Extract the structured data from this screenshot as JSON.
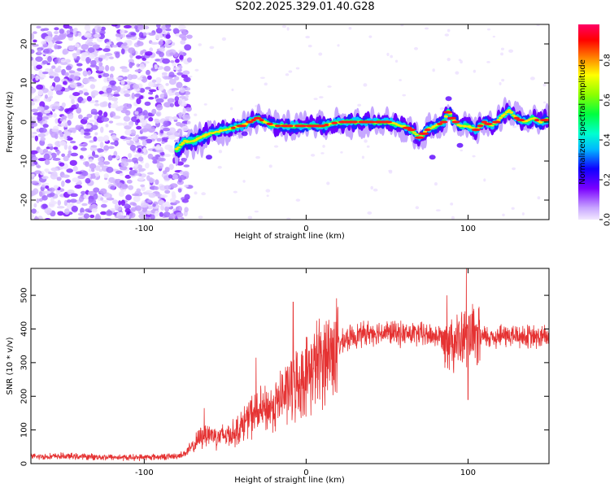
{
  "figure_title": "S202.2025.329.01.40.G28",
  "colors": {
    "snr_line": "#e53232",
    "spectrogram_low": "#8a00ff",
    "spectrogram_mid": "#00ff66",
    "spectrogram_high": "#ff0033"
  },
  "chart_data": [
    {
      "type": "heatmap",
      "title": "",
      "xlabel": "Height of straight line (km)",
      "ylabel": "Frequency (Hz)",
      "xlim": [
        -170,
        150
      ],
      "ylim": [
        -25,
        25
      ],
      "xticks": [
        -100,
        0,
        100
      ],
      "yticks": [
        -20,
        -10,
        0,
        10,
        20
      ],
      "noise_region_x": [
        -170,
        -72
      ],
      "ridge": {
        "x": [
          -80,
          -75,
          -70,
          -60,
          -50,
          -40,
          -30,
          -20,
          -10,
          0,
          10,
          20,
          30,
          40,
          50,
          60,
          65,
          70,
          75,
          80,
          85,
          88,
          90,
          95,
          100,
          105,
          110,
          115,
          120,
          125,
          130,
          135,
          140,
          145,
          150
        ],
        "frequency_hz": [
          -7,
          -5,
          -5,
          -3,
          -2,
          -1,
          1,
          -1,
          -1,
          -1,
          -1,
          0,
          0,
          0,
          0,
          -1,
          -2,
          -4,
          -2,
          -1,
          0,
          3,
          1,
          -1,
          -1,
          -2,
          0,
          -1,
          1,
          3,
          1,
          0,
          1,
          0,
          1
        ]
      },
      "colorbar": {
        "label": "Normalized spectral amplitude",
        "range": [
          0.0,
          0.98
        ],
        "ticks": [
          "0.0",
          "0.2",
          "0.4",
          "0.6",
          "0.8"
        ]
      }
    },
    {
      "type": "line",
      "title": "",
      "xlabel": "Height of straight line (km)",
      "ylabel": "SNR (10 * v/v)",
      "xlim": [
        -170,
        150
      ],
      "ylim": [
        0,
        580
      ],
      "xticks": [
        -100,
        0,
        100
      ],
      "yticks": [
        0,
        100,
        200,
        300,
        400,
        500
      ],
      "series": [
        {
          "name": "SNR",
          "x": [
            -170,
            -150,
            -130,
            -110,
            -90,
            -80,
            -75,
            -70,
            -65,
            -60,
            -55,
            -50,
            -45,
            -40,
            -35,
            -30,
            -25,
            -20,
            -15,
            -10,
            -5,
            0,
            5,
            10,
            15,
            20,
            25,
            30,
            40,
            50,
            60,
            70,
            80,
            90,
            95,
            100,
            105,
            110,
            120,
            130,
            140,
            150
          ],
          "values": [
            20,
            22,
            20,
            18,
            20,
            22,
            30,
            50,
            80,
            90,
            80,
            85,
            90,
            110,
            140,
            150,
            160,
            170,
            200,
            220,
            240,
            260,
            290,
            310,
            330,
            350,
            370,
            380,
            390,
            390,
            385,
            385,
            380,
            370,
            360,
            380,
            370,
            375,
            380,
            380,
            375,
            375
          ],
          "spikes": [
            {
              "x": -63,
              "value": 165
            },
            {
              "x": -31,
              "value": 315
            },
            {
              "x": -8,
              "value": 480
            },
            {
              "x": 87,
              "value": 500
            },
            {
              "x": 99,
              "value": 580
            },
            {
              "x": 100,
              "value": 190
            }
          ]
        }
      ]
    }
  ]
}
